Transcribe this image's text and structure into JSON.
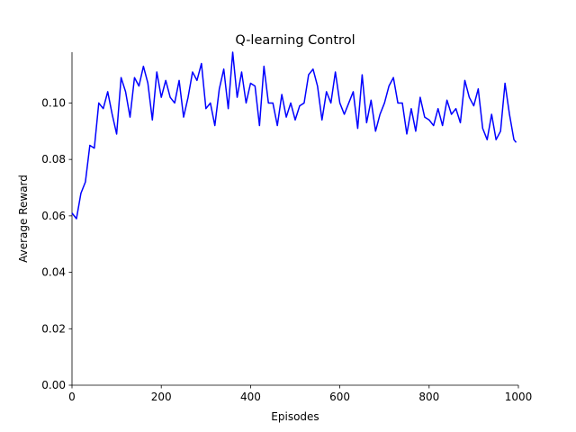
{
  "chart_data": {
    "type": "line",
    "title": "Q-learning Control",
    "x_label": "Episodes",
    "y_label": "Average Reward",
    "x": [
      0,
      10,
      20,
      30,
      40,
      50,
      60,
      70,
      80,
      90,
      100,
      110,
      120,
      130,
      140,
      150,
      160,
      170,
      180,
      190,
      200,
      210,
      220,
      230,
      240,
      250,
      260,
      270,
      280,
      290,
      300,
      310,
      320,
      330,
      340,
      350,
      360,
      370,
      380,
      390,
      400,
      410,
      420,
      430,
      440,
      450,
      460,
      470,
      480,
      490,
      500,
      510,
      520,
      530,
      540,
      550,
      560,
      570,
      580,
      590,
      600,
      610,
      620,
      630,
      640,
      650,
      660,
      670,
      680,
      690,
      700,
      710,
      720,
      730,
      740,
      750,
      760,
      770,
      780,
      790,
      800,
      810,
      820,
      830,
      840,
      850,
      860,
      870,
      880,
      890,
      900,
      910,
      920,
      930,
      940,
      950,
      960,
      970,
      980,
      990,
      995
    ],
    "series": [
      {
        "name": "Average Reward",
        "color": "#0000ff",
        "values": [
          0.061,
          0.059,
          0.068,
          0.072,
          0.085,
          0.084,
          0.1,
          0.098,
          0.104,
          0.096,
          0.089,
          0.109,
          0.104,
          0.095,
          0.109,
          0.106,
          0.113,
          0.107,
          0.094,
          0.111,
          0.102,
          0.108,
          0.102,
          0.1,
          0.108,
          0.095,
          0.102,
          0.111,
          0.108,
          0.114,
          0.098,
          0.1,
          0.092,
          0.105,
          0.112,
          0.098,
          0.118,
          0.102,
          0.111,
          0.1,
          0.107,
          0.106,
          0.092,
          0.113,
          0.1,
          0.1,
          0.092,
          0.103,
          0.095,
          0.1,
          0.094,
          0.099,
          0.1,
          0.11,
          0.112,
          0.106,
          0.094,
          0.104,
          0.1,
          0.111,
          0.1,
          0.096,
          0.1,
          0.104,
          0.091,
          0.11,
          0.093,
          0.101,
          0.09,
          0.096,
          0.1,
          0.106,
          0.109,
          0.1,
          0.1,
          0.089,
          0.098,
          0.09,
          0.102,
          0.095,
          0.094,
          0.092,
          0.098,
          0.092,
          0.101,
          0.096,
          0.098,
          0.093,
          0.108,
          0.102,
          0.099,
          0.105,
          0.091,
          0.087,
          0.096,
          0.087,
          0.09,
          0.107,
          0.096,
          0.087,
          0.086
        ]
      }
    ],
    "xlim": [
      0,
      1000
    ],
    "xticks": [
      0,
      200,
      400,
      600,
      800,
      1000
    ],
    "ylim": [
      0,
      0.118
    ],
    "yticks": [
      {
        "value": 0,
        "label": "0.00"
      },
      {
        "value": 0.02,
        "label": "0.02"
      },
      {
        "value": 0.04,
        "label": "0.04"
      },
      {
        "value": 0.06,
        "label": "0.06"
      },
      {
        "value": 0.08,
        "label": "0.08"
      },
      {
        "value": 0.1,
        "label": "0.10"
      }
    ]
  }
}
